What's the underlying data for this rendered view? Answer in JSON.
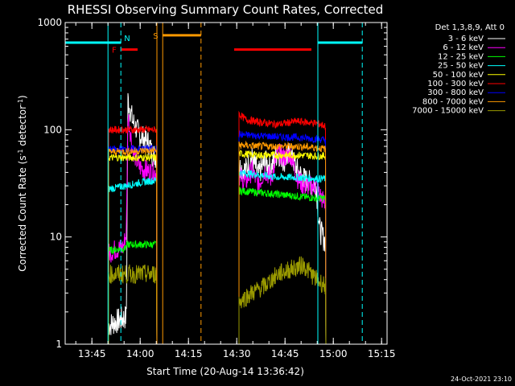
{
  "chart_data": {
    "type": "line",
    "title": "RHESSI Observing Summary Count Rates, Corrected",
    "xlabel": "Start Time (20-Aug-14 13:36:42)",
    "ylabel_parts": [
      "Corrected Count Rate (s",
      "-1",
      " detector",
      "-1",
      ")"
    ],
    "x_unit": "minutes since 13:36:42",
    "xlim": [
      0,
      100
    ],
    "ylim": [
      1,
      1000
    ],
    "yscale": "log",
    "x_ticks": [
      {
        "label": "13:45",
        "value": 8.3
      },
      {
        "label": "14:00",
        "value": 23.3
      },
      {
        "label": "14:15",
        "value": 38.3
      },
      {
        "label": "14:30",
        "value": 53.3
      },
      {
        "label": "14:45",
        "value": 68.3
      },
      {
        "label": "15:00",
        "value": 83.3
      },
      {
        "label": "15:15",
        "value": 98.3
      }
    ],
    "y_ticks": [
      {
        "label": "1",
        "value": 1
      },
      {
        "label": "10",
        "value": 10
      },
      {
        "label": "100",
        "value": 100
      },
      {
        "label": "1000",
        "value": 1000
      }
    ],
    "legend_header": "Det 1,3,8,9, Att 0",
    "legend_position": "right",
    "series": [
      {
        "name": "3 - 6 keV",
        "color": "#ffffff",
        "visible": [
          [
            13.5,
            19.5,
            0.8
          ],
          [
            33.5,
            37.5,
            2.2
          ]
        ],
        "anchors": [
          [
            13.5,
            1.5
          ],
          [
            19.0,
            1.8
          ],
          [
            19.5,
            190
          ],
          [
            21,
            120
          ],
          [
            23,
            90
          ],
          [
            26,
            75
          ],
          [
            27,
            60
          ],
          [
            28.5,
            55
          ]
        ],
        "anchors2": [
          [
            54,
            45
          ],
          [
            56,
            42
          ],
          [
            58,
            55
          ],
          [
            60,
            38
          ],
          [
            62,
            50
          ],
          [
            64,
            44
          ],
          [
            66,
            62
          ],
          [
            68,
            52
          ],
          [
            70,
            60
          ],
          [
            72,
            42
          ],
          [
            74,
            35
          ],
          [
            76,
            32
          ],
          [
            78,
            30
          ],
          [
            79,
            12
          ],
          [
            80,
            10
          ],
          [
            81,
            9
          ]
        ]
      },
      {
        "name": "6 - 12 keV",
        "color": "#ff00ff",
        "anchors": [
          [
            13.5,
            7
          ],
          [
            15,
            7.5
          ],
          [
            18,
            8
          ],
          [
            19,
            11
          ],
          [
            19.5,
            140
          ],
          [
            21,
            65
          ],
          [
            23,
            45
          ],
          [
            25,
            42
          ],
          [
            27,
            40
          ],
          [
            28.5,
            40
          ]
        ],
        "anchors2": [
          [
            54,
            38
          ],
          [
            56,
            32
          ],
          [
            58,
            42
          ],
          [
            60,
            30
          ],
          [
            62,
            42
          ],
          [
            64,
            35
          ],
          [
            66,
            62
          ],
          [
            68,
            55
          ],
          [
            70,
            60
          ],
          [
            72,
            36
          ],
          [
            74,
            30
          ],
          [
            76,
            30
          ],
          [
            78,
            30
          ],
          [
            79,
            25
          ],
          [
            80,
            22
          ],
          [
            81,
            20
          ]
        ]
      },
      {
        "name": "12 - 25 keV",
        "color": "#00ff00",
        "anchors": [
          [
            13.5,
            7.5
          ],
          [
            18.5,
            7.8
          ],
          [
            19.5,
            8.5
          ],
          [
            23,
            8.5
          ],
          [
            28.5,
            8.5
          ]
        ],
        "anchors2": [
          [
            54,
            27
          ],
          [
            60,
            26
          ],
          [
            66,
            25
          ],
          [
            72,
            24
          ],
          [
            78,
            23
          ],
          [
            81,
            23
          ]
        ]
      },
      {
        "name": "25 - 50 keV",
        "color": "#00ffff",
        "anchors": [
          [
            13.5,
            28
          ],
          [
            19,
            30
          ],
          [
            23,
            32
          ],
          [
            28.5,
            34
          ]
        ],
        "anchors2": [
          [
            54,
            40
          ],
          [
            60,
            38
          ],
          [
            66,
            36
          ],
          [
            72,
            36
          ],
          [
            78,
            35
          ],
          [
            81,
            35
          ]
        ]
      },
      {
        "name": "50 - 100 keV",
        "color": "#ffff00",
        "anchors": [
          [
            13.5,
            55
          ],
          [
            20,
            55
          ],
          [
            28.5,
            55
          ]
        ],
        "anchors2": [
          [
            54,
            60
          ],
          [
            60,
            58
          ],
          [
            66,
            58
          ],
          [
            72,
            58
          ],
          [
            78,
            57
          ],
          [
            81,
            57
          ]
        ]
      },
      {
        "name": "100 - 300 keV",
        "color": "#ff0000",
        "anchors": [
          [
            13.5,
            100
          ],
          [
            20,
            100
          ],
          [
            28.5,
            100
          ]
        ],
        "anchors2": [
          [
            54,
            140
          ],
          [
            56,
            125
          ],
          [
            60,
            118
          ],
          [
            66,
            112
          ],
          [
            72,
            120
          ],
          [
            78,
            115
          ],
          [
            81,
            108
          ]
        ]
      },
      {
        "name": "300 - 800 keV",
        "color": "#0000ff",
        "anchors": [
          [
            13.5,
            65
          ],
          [
            20,
            66
          ],
          [
            28.5,
            67
          ]
        ],
        "anchors2": [
          [
            54,
            90
          ],
          [
            60,
            88
          ],
          [
            66,
            86
          ],
          [
            72,
            85
          ],
          [
            78,
            82
          ],
          [
            81,
            80
          ]
        ]
      },
      {
        "name": "800 - 7000 keV",
        "color": "#ff9900",
        "anchors": [
          [
            13.5,
            62
          ],
          [
            20,
            63
          ],
          [
            28.5,
            64
          ]
        ],
        "anchors2": [
          [
            54,
            72
          ],
          [
            60,
            70
          ],
          [
            66,
            70
          ],
          [
            72,
            70
          ],
          [
            78,
            68
          ],
          [
            81,
            66
          ]
        ]
      },
      {
        "name": "7000 - 15000 keV",
        "color": "#999900",
        "anchors": [
          [
            13.5,
            4.5
          ],
          [
            28.5,
            4.5
          ]
        ],
        "anchors2": [
          [
            54,
            2.5
          ],
          [
            58,
            3
          ],
          [
            62,
            3.5
          ],
          [
            66,
            4.5
          ],
          [
            70,
            5
          ],
          [
            74,
            5.5
          ],
          [
            78,
            4
          ],
          [
            81,
            3.5
          ]
        ]
      }
    ],
    "bars": [
      {
        "label": "N",
        "label_color": "#00ffff",
        "color": "#00ffff",
        "y": 650,
        "ranges": [
          [
            0,
            17.3
          ],
          [
            78.5,
            92.3
          ]
        ]
      },
      {
        "label": "F",
        "label_color": "#ff0000",
        "color": "#ff0000",
        "y": 560,
        "ranges": [
          [
            17.5,
            22.5
          ],
          [
            52.5,
            76.5
          ]
        ]
      },
      {
        "label": "S",
        "label_color": "#ff9900",
        "color": "#ff9900",
        "y": 760,
        "ranges": [
          [
            30.3,
            42.2
          ]
        ]
      }
    ],
    "vlines": [
      {
        "x": 13.3,
        "color": "#00ffff",
        "dash": false
      },
      {
        "x": 17.3,
        "color": "#00ffff",
        "dash": true
      },
      {
        "x": 28.5,
        "color": "#ff9900",
        "dash": false
      },
      {
        "x": 30.3,
        "color": "#ff9900",
        "dash": false
      },
      {
        "x": 42.2,
        "color": "#ff9900",
        "dash": true
      },
      {
        "x": 78.5,
        "color": "#00ffff",
        "dash": false
      },
      {
        "x": 92.3,
        "color": "#00ffff",
        "dash": true
      }
    ],
    "timestamp": "24-Oct-2021 23:10"
  }
}
